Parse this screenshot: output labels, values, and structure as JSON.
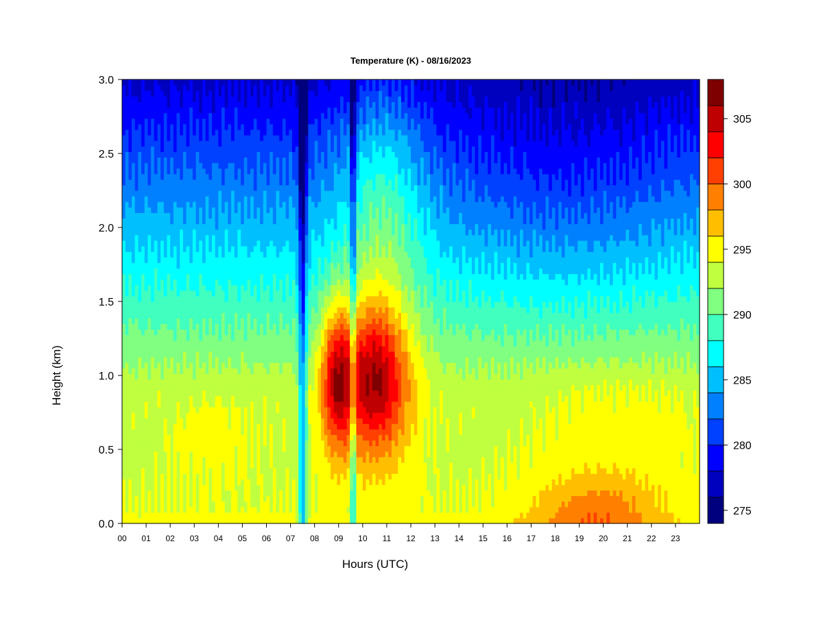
{
  "chart_data": {
    "type": "heatmap",
    "title": "Temperature (K) - 08/16/2023",
    "xlabel": "Hours (UTC)",
    "ylabel": "Height (km)",
    "x_tick_labels": [
      "00",
      "01",
      "02",
      "03",
      "04",
      "05",
      "06",
      "07",
      "08",
      "09",
      "10",
      "11",
      "12",
      "13",
      "14",
      "15",
      "16",
      "17",
      "18",
      "19",
      "20",
      "21",
      "22",
      "23"
    ],
    "x_tick_values": [
      0,
      1,
      2,
      3,
      4,
      5,
      6,
      7,
      8,
      9,
      10,
      11,
      12,
      13,
      14,
      15,
      16,
      17,
      18,
      19,
      20,
      21,
      22,
      23
    ],
    "xlim": [
      0,
      24
    ],
    "y_tick_labels": [
      "0.0",
      "0.5",
      "1.0",
      "1.5",
      "2.0",
      "2.5",
      "3.0"
    ],
    "y_tick_values": [
      0.0,
      0.5,
      1.0,
      1.5,
      2.0,
      2.5,
      3.0
    ],
    "ylim": [
      0,
      3.0
    ],
    "colorbar": {
      "levels": [
        274,
        276,
        278,
        280,
        282,
        284,
        286,
        288,
        290,
        292,
        294,
        296,
        298,
        300,
        302,
        304,
        306,
        308
      ],
      "colors": [
        "#00007F",
        "#0000BF",
        "#0000FF",
        "#0040FF",
        "#0080FF",
        "#00BFFF",
        "#00FFFF",
        "#40FFBF",
        "#80FF80",
        "#BFFF40",
        "#FFFF00",
        "#FFBF00",
        "#FF8000",
        "#FF4000",
        "#FF0000",
        "#BF0000",
        "#7F0000"
      ],
      "tick_labels": [
        "275",
        "280",
        "285",
        "290",
        "295",
        "300",
        "305"
      ],
      "tick_values": [
        275,
        280,
        285,
        290,
        295,
        300,
        305
      ]
    },
    "grid": false,
    "description_of_field": {
      "surface_layer_K": 295,
      "boundary_layer_0.5_to_1.0km_K": 294,
      "top_3km_K": 277,
      "max_K": 306,
      "max_location_hour": 10.5,
      "max_location_km": 0.95
    }
  }
}
